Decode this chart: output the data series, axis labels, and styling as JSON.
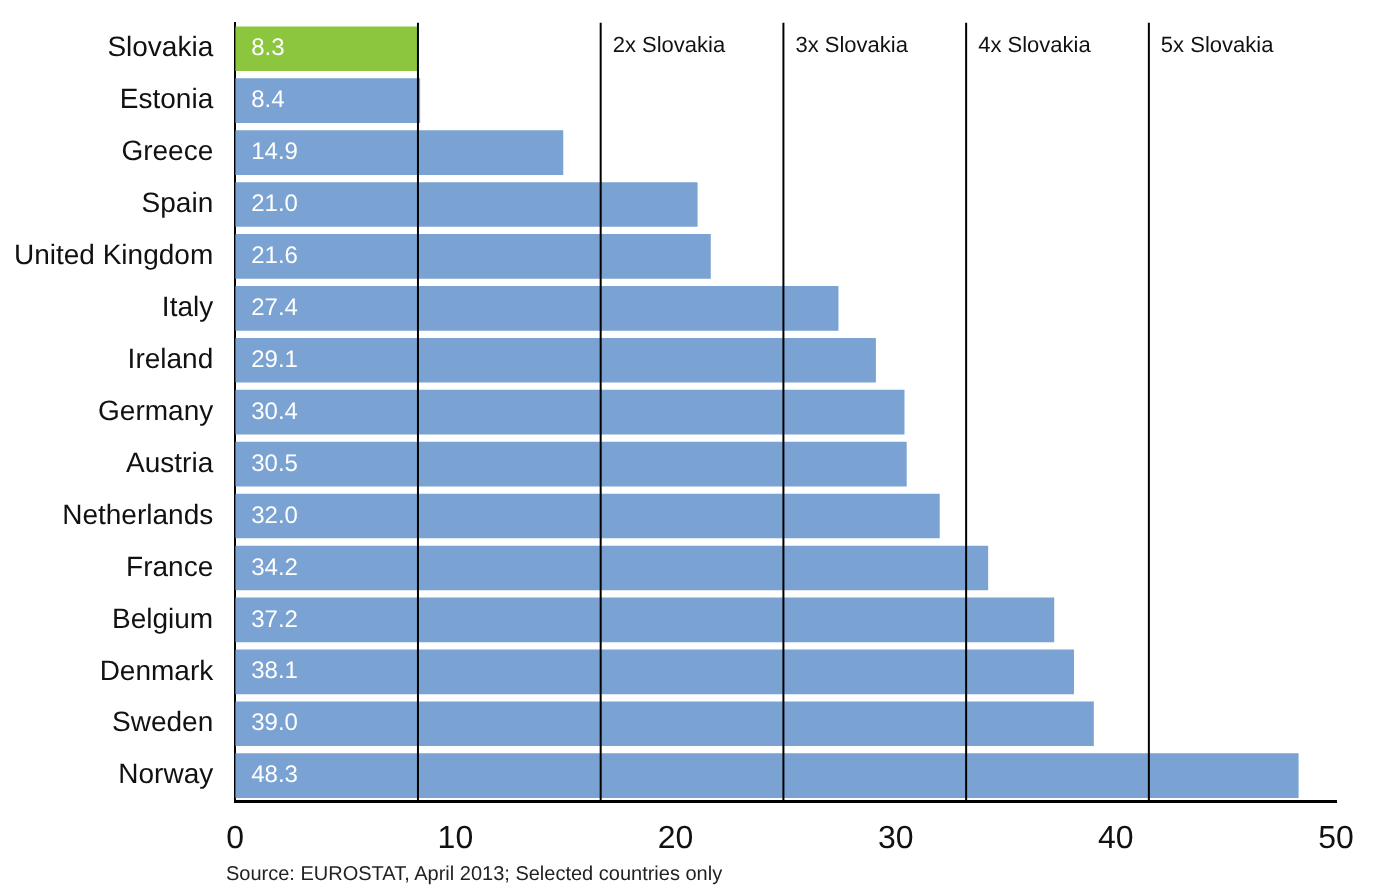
{
  "chart_data": {
    "type": "bar",
    "orientation": "horizontal",
    "categories": [
      "Slovakia",
      "Estonia",
      "Greece",
      "Spain",
      "United Kingdom",
      "Italy",
      "Ireland",
      "Germany",
      "Austria",
      "Netherlands",
      "France",
      "Belgium",
      "Denmark",
      "Sweden",
      "Norway"
    ],
    "values": [
      8.3,
      8.4,
      14.9,
      21.0,
      21.6,
      27.4,
      29.1,
      30.4,
      30.5,
      32.0,
      34.2,
      37.2,
      38.1,
      39.0,
      48.3
    ],
    "value_labels": [
      "8.3",
      "8.4",
      "14.9",
      "21.0",
      "21.6",
      "27.4",
      "29.1",
      "30.4",
      "30.5",
      "32.0",
      "34.2",
      "37.2",
      "38.1",
      "39.0",
      "48.3"
    ],
    "colors": [
      "#8cc63e",
      "#7aa2d2",
      "#7aa2d2",
      "#7aa2d2",
      "#7aa2d2",
      "#7aa2d2",
      "#7aa2d2",
      "#7aa2d2",
      "#7aa2d2",
      "#7aa2d2",
      "#7aa2d2",
      "#7aa2d2",
      "#7aa2d2",
      "#7aa2d2",
      "#7aa2d2"
    ],
    "xlim": [
      0,
      50
    ],
    "xticks": [
      0,
      10,
      20,
      30,
      40,
      50
    ],
    "ref_lines": [
      {
        "axis": "x",
        "value": 8.3,
        "color": "#000000"
      },
      {
        "axis": "x",
        "value": 16.6,
        "label": "2x Slovakia",
        "color": "#000000"
      },
      {
        "axis": "x",
        "value": 24.9,
        "label": "3x Slovakia",
        "color": "#000000"
      },
      {
        "axis": "x",
        "value": 33.2,
        "label": "4x Slovakia",
        "color": "#000000"
      },
      {
        "axis": "x",
        "value": 41.5,
        "label": "5x Slovakia",
        "color": "#000000"
      }
    ],
    "annotations": [
      "Source: EUROSTAT, April 2013; Selected countries only"
    ],
    "grid": false,
    "legend": false
  }
}
